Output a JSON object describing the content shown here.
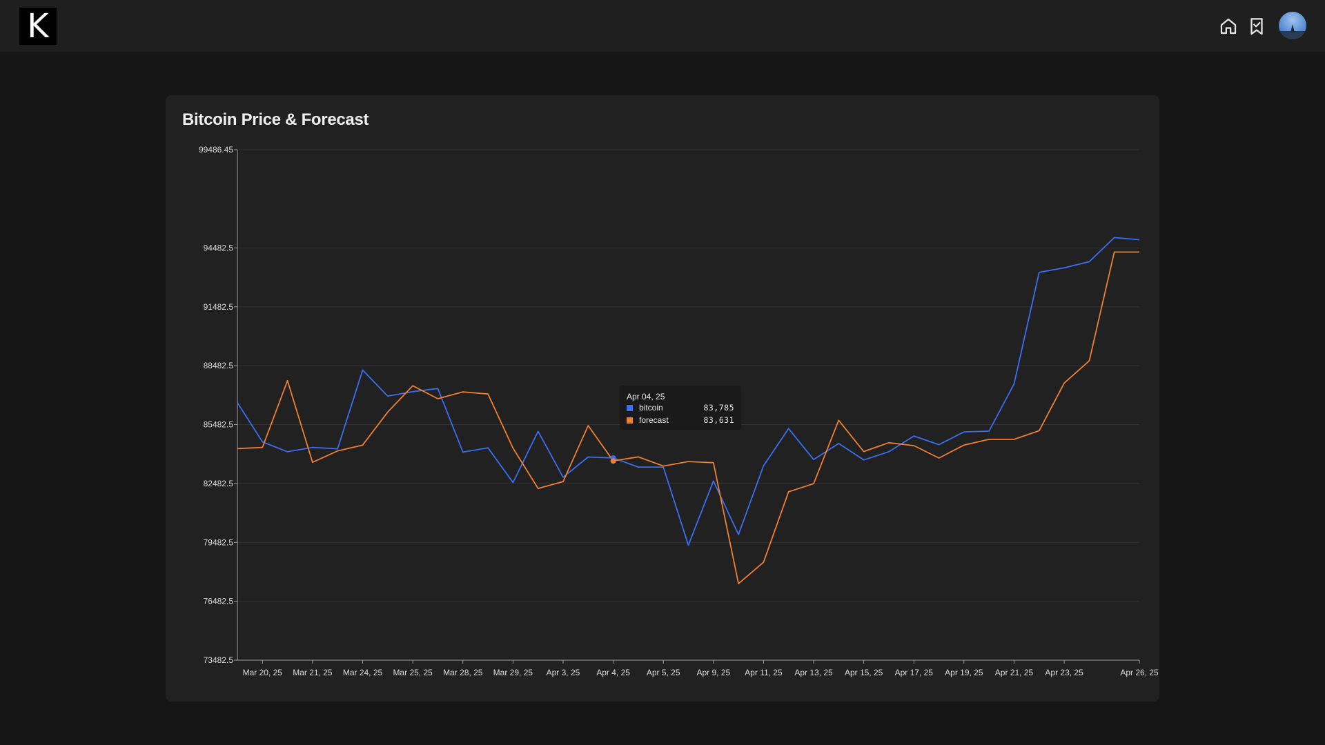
{
  "app": {
    "logo_text": "K"
  },
  "nav": {
    "home_icon": "home-icon",
    "bookmark_icon": "bookmark-check-icon",
    "avatar_icon": "avatar"
  },
  "card": {
    "title": "Bitcoin Price & Forecast"
  },
  "colors": {
    "bitcoin": "#3a6ff0",
    "forecast": "#f07f2e",
    "grid": "#333333",
    "axis": "#a0a0a0"
  },
  "tooltip": {
    "title": "Apr 04, 25",
    "rows": [
      {
        "name": "bitcoin",
        "value": "83,785"
      },
      {
        "name": "forecast",
        "value": "83,631"
      }
    ]
  },
  "chart_data": {
    "type": "line",
    "title": "Bitcoin Price & Forecast",
    "xlabel": "",
    "ylabel": "",
    "ylim": [
      73482.5,
      99486.45
    ],
    "y_ticks": [
      "99486.45",
      "94482.5",
      "91482.5",
      "88482.5",
      "85482.5",
      "82482.5",
      "79482.5",
      "76482.5",
      "73482.5"
    ],
    "y_tick_values": [
      99486.45,
      94482.5,
      91482.5,
      88482.5,
      85482.5,
      82482.5,
      79482.5,
      76482.5,
      73482.5
    ],
    "x_ticks": [
      {
        "index": 1,
        "label": "Mar 20, 25"
      },
      {
        "index": 3,
        "label": "Mar 21, 25"
      },
      {
        "index": 5,
        "label": "Mar 24, 25"
      },
      {
        "index": 7,
        "label": "Mar 25, 25"
      },
      {
        "index": 9,
        "label": "Mar 28, 25"
      },
      {
        "index": 11,
        "label": "Mar 29, 25"
      },
      {
        "index": 13,
        "label": "Apr 3, 25"
      },
      {
        "index": 15,
        "label": "Apr 4, 25"
      },
      {
        "index": 17,
        "label": "Apr 5, 25"
      },
      {
        "index": 19,
        "label": "Apr 9, 25"
      },
      {
        "index": 21,
        "label": "Apr 11, 25"
      },
      {
        "index": 23,
        "label": "Apr 13, 25"
      },
      {
        "index": 25,
        "label": "Apr 15, 25"
      },
      {
        "index": 27,
        "label": "Apr 17, 25"
      },
      {
        "index": 29,
        "label": "Apr 19, 25"
      },
      {
        "index": 31,
        "label": "Apr 21, 25"
      },
      {
        "index": 33,
        "label": "Apr 23, 25"
      },
      {
        "index": 36,
        "label": "Apr 26, 25"
      }
    ],
    "point_count": 37,
    "active_index": 15,
    "series": [
      {
        "name": "bitcoin",
        "values": [
          86600,
          84600,
          84100,
          84320,
          84250,
          88260,
          86930,
          87160,
          87320,
          84080,
          84300,
          82530,
          85140,
          82800,
          83830,
          83785,
          83320,
          83320,
          79340,
          82610,
          79880,
          83380,
          85280,
          83700,
          84520,
          83680,
          84100,
          84900,
          84460,
          85110,
          85150,
          87560,
          93240,
          93470,
          93780,
          95010,
          94900
        ]
      },
      {
        "name": "forecast",
        "values": [
          84260,
          84320,
          87720,
          83560,
          84140,
          84440,
          86120,
          87460,
          86800,
          87150,
          87040,
          84280,
          82230,
          82580,
          85430,
          83631,
          83840,
          83370,
          83600,
          83540,
          77380,
          78470,
          82060,
          82470,
          85700,
          84110,
          84560,
          84410,
          83780,
          84440,
          84730,
          84730,
          85170,
          87600,
          88730,
          94270,
          94270
        ]
      }
    ]
  }
}
